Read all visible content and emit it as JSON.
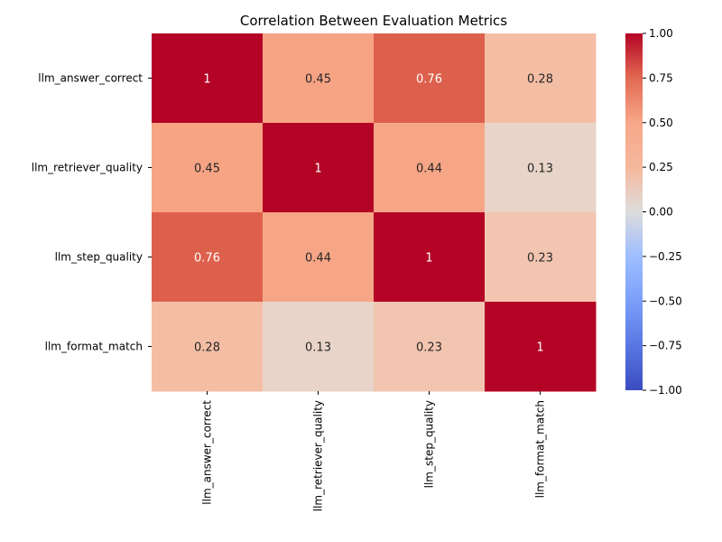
{
  "chart_data": {
    "type": "heatmap",
    "title": "Correlation Between Evaluation Metrics",
    "xlabel": "",
    "ylabel": "",
    "row_labels": [
      "llm_answer_correct",
      "llm_retriever_quality",
      "llm_step_quality",
      "llm_format_match"
    ],
    "col_labels": [
      "llm_answer_correct",
      "llm_retriever_quality",
      "llm_step_quality",
      "llm_format_match"
    ],
    "values": [
      [
        1,
        0.45,
        0.76,
        0.28
      ],
      [
        0.45,
        1,
        0.44,
        0.13
      ],
      [
        0.76,
        0.44,
        1,
        0.23
      ],
      [
        0.28,
        0.13,
        0.23,
        1
      ]
    ],
    "annotations": [
      [
        "1",
        "0.45",
        "0.76",
        "0.28"
      ],
      [
        "0.45",
        "1",
        "0.44",
        "0.13"
      ],
      [
        "0.76",
        "0.44",
        "1",
        "0.23"
      ],
      [
        "0.28",
        "0.13",
        "0.23",
        "1"
      ]
    ],
    "colormap": "coolwarm",
    "vmin": -1.0,
    "vmax": 1.0,
    "colorbar_ticks": [
      "1.00",
      "0.75",
      "0.50",
      "0.25",
      "0.00",
      "−0.25",
      "−0.50",
      "−0.75",
      "−1.00"
    ],
    "colorbar_tick_values": [
      1.0,
      0.75,
      0.5,
      0.25,
      0.0,
      -0.25,
      -0.5,
      -0.75,
      -1.0
    ],
    "grid": false
  }
}
